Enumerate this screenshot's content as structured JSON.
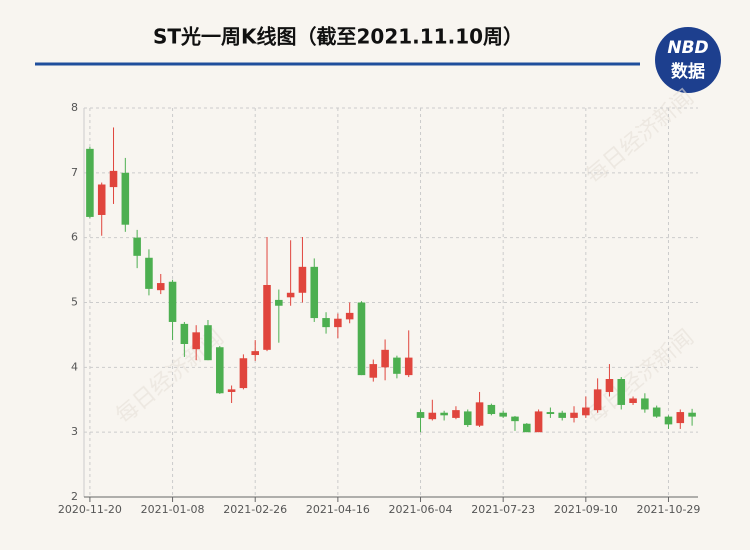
{
  "chart_data": {
    "type": "candlestick",
    "title": "ST光一周K线图（截至2021.11.10周）",
    "categories": [
      "2020-11-20",
      null,
      null,
      null,
      null,
      null,
      null,
      "2021-01-08",
      null,
      null,
      null,
      null,
      null,
      null,
      "2021-02-26",
      null,
      null,
      null,
      null,
      null,
      null,
      "2021-04-16",
      null,
      null,
      null,
      null,
      null,
      null,
      "2021-06-04",
      null,
      null,
      null,
      null,
      null,
      null,
      "2021-07-23",
      null,
      null,
      null,
      null,
      null,
      null,
      "2021-09-10",
      null,
      null,
      null,
      null,
      null,
      null,
      "2021-10-29",
      null,
      null
    ],
    "open": [
      7.37,
      6.35,
      6.78,
      7.0,
      6.0,
      5.69,
      5.19,
      5.32,
      4.67,
      4.28,
      4.65,
      4.31,
      3.62,
      3.68,
      4.19,
      4.27,
      5.04,
      5.08,
      5.15,
      5.55,
      4.76,
      4.62,
      4.74,
      5.0,
      3.84,
      4.0,
      4.15,
      3.88,
      3.31,
      3.2,
      3.3,
      3.22,
      3.32,
      3.1,
      3.42,
      3.3,
      3.24,
      3.13,
      3.0,
      3.31,
      3.3,
      3.22,
      3.26,
      3.34,
      3.62,
      3.82,
      3.45,
      3.52,
      3.38,
      3.24,
      3.14,
      3.3
    ],
    "high": [
      7.4,
      6.85,
      7.7,
      7.23,
      6.12,
      5.82,
      5.44,
      5.35,
      4.7,
      4.65,
      4.73,
      4.33,
      3.72,
      4.2,
      4.42,
      6.01,
      5.2,
      5.96,
      6.01,
      5.68,
      4.85,
      4.83,
      5.0,
      5.02,
      4.12,
      4.43,
      4.18,
      4.57,
      3.35,
      3.5,
      3.33,
      3.4,
      3.35,
      3.62,
      3.44,
      3.33,
      3.25,
      3.14,
      3.35,
      3.38,
      3.33,
      3.4,
      3.55,
      3.83,
      4.05,
      3.85,
      3.55,
      3.6,
      3.41,
      3.26,
      3.35,
      3.36
    ],
    "low": [
      6.3,
      6.03,
      6.52,
      6.09,
      5.53,
      5.11,
      5.13,
      4.42,
      4.16,
      4.11,
      4.11,
      3.59,
      3.45,
      3.66,
      4.1,
      4.25,
      4.38,
      4.95,
      5.0,
      4.7,
      4.52,
      4.45,
      4.68,
      3.88,
      3.78,
      3.8,
      3.83,
      3.85,
      3.0,
      3.18,
      3.18,
      3.2,
      3.08,
      3.08,
      3.26,
      3.22,
      3.02,
      3.0,
      3.0,
      3.22,
      3.18,
      3.15,
      3.22,
      3.3,
      3.55,
      3.35,
      3.42,
      3.3,
      3.22,
      3.05,
      3.05,
      3.1
    ],
    "close": [
      6.32,
      6.82,
      7.03,
      6.2,
      5.72,
      5.21,
      5.3,
      4.7,
      4.36,
      4.54,
      4.11,
      3.6,
      3.66,
      4.14,
      4.25,
      5.27,
      4.95,
      5.15,
      5.55,
      4.76,
      4.62,
      4.75,
      4.84,
      3.88,
      4.05,
      4.27,
      3.9,
      4.15,
      3.22,
      3.3,
      3.26,
      3.34,
      3.11,
      3.46,
      3.28,
      3.24,
      3.17,
      3.0,
      3.32,
      3.28,
      3.22,
      3.3,
      3.38,
      3.66,
      3.82,
      3.42,
      3.52,
      3.35,
      3.24,
      3.12,
      3.31,
      3.24
    ],
    "up_color": "#e0453d",
    "down_color": "#4caf50",
    "ylim": [
      2,
      8
    ],
    "yticks": [
      2,
      3,
      4,
      5,
      6,
      7,
      8
    ],
    "grid": true
  },
  "logo": {
    "line1": "NBD",
    "line2": "数据"
  },
  "watermark": "每日经济新闻"
}
